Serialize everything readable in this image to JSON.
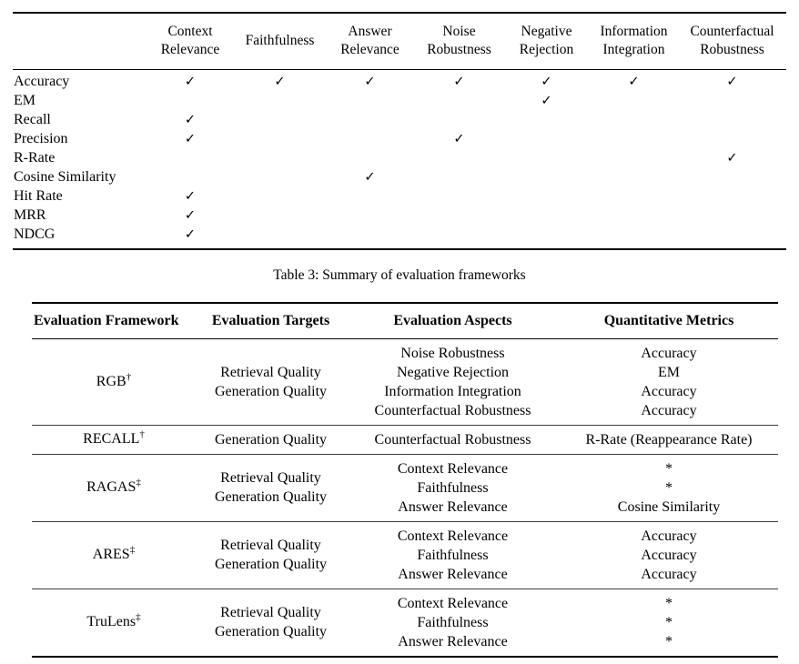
{
  "caption": "Table 3: Summary of evaluation frameworks",
  "check_glyph": "✓",
  "matrix_table": {
    "columns": [
      "Context Relevance",
      "Faithfulness",
      "Answer Relevance",
      "Noise Robustness",
      "Negative Rejection",
      "Information Integration",
      "Counterfactual Robustness"
    ],
    "rows": [
      {
        "label": "Accuracy",
        "checks": [
          true,
          true,
          true,
          true,
          true,
          true,
          true
        ]
      },
      {
        "label": "EM",
        "checks": [
          false,
          false,
          false,
          false,
          true,
          false,
          false
        ]
      },
      {
        "label": "Recall",
        "checks": [
          true,
          false,
          false,
          false,
          false,
          false,
          false
        ]
      },
      {
        "label": "Precision",
        "checks": [
          true,
          false,
          false,
          true,
          false,
          false,
          false
        ]
      },
      {
        "label": "R-Rate",
        "checks": [
          false,
          false,
          false,
          false,
          false,
          false,
          true
        ]
      },
      {
        "label": "Cosine Similarity",
        "checks": [
          false,
          false,
          true,
          false,
          false,
          false,
          false
        ]
      },
      {
        "label": "Hit Rate",
        "checks": [
          true,
          false,
          false,
          false,
          false,
          false,
          false
        ]
      },
      {
        "label": "MRR",
        "checks": [
          true,
          false,
          false,
          false,
          false,
          false,
          false
        ]
      },
      {
        "label": "NDCG",
        "checks": [
          true,
          false,
          false,
          false,
          false,
          false,
          false
        ]
      }
    ]
  },
  "frameworks_table": {
    "headers": [
      "Evaluation Framework",
      "Evaluation Targets",
      "Evaluation Aspects",
      "Quantitative Metrics"
    ],
    "rows": [
      {
        "framework": "RGB",
        "superscript": "†",
        "targets": [
          "Retrieval Quality",
          "Generation Quality"
        ],
        "aspects": [
          "Noise Robustness",
          "Negative Rejection",
          "Information Integration",
          "Counterfactual Robustness"
        ],
        "metrics": [
          "Accuracy",
          "EM",
          "Accuracy",
          "Accuracy"
        ]
      },
      {
        "framework": "RECALL",
        "superscript": "†",
        "targets": [
          "Generation Quality"
        ],
        "aspects": [
          "Counterfactual Robustness"
        ],
        "metrics": [
          "R-Rate (Reappearance Rate)"
        ]
      },
      {
        "framework": "RAGAS",
        "superscript": "‡",
        "targets": [
          "Retrieval Quality",
          "Generation Quality"
        ],
        "aspects": [
          "Context Relevance",
          "Faithfulness",
          "Answer Relevance"
        ],
        "metrics": [
          "*",
          "*",
          "Cosine Similarity"
        ]
      },
      {
        "framework": "ARES",
        "superscript": "‡",
        "targets": [
          "Retrieval Quality",
          "Generation Quality"
        ],
        "aspects": [
          "Context Relevance",
          "Faithfulness",
          "Answer Relevance"
        ],
        "metrics": [
          "Accuracy",
          "Accuracy",
          "Accuracy"
        ]
      },
      {
        "framework": "TruLens",
        "superscript": "‡",
        "targets": [
          "Retrieval Quality",
          "Generation Quality"
        ],
        "aspects": [
          "Context Relevance",
          "Faithfulness",
          "Answer Relevance"
        ],
        "metrics": [
          "*",
          "*",
          "*"
        ]
      }
    ]
  },
  "colors": {
    "text": "#000000",
    "rule": "#000000",
    "row_divider": "#3c3c3c",
    "background": "#ffffff"
  }
}
